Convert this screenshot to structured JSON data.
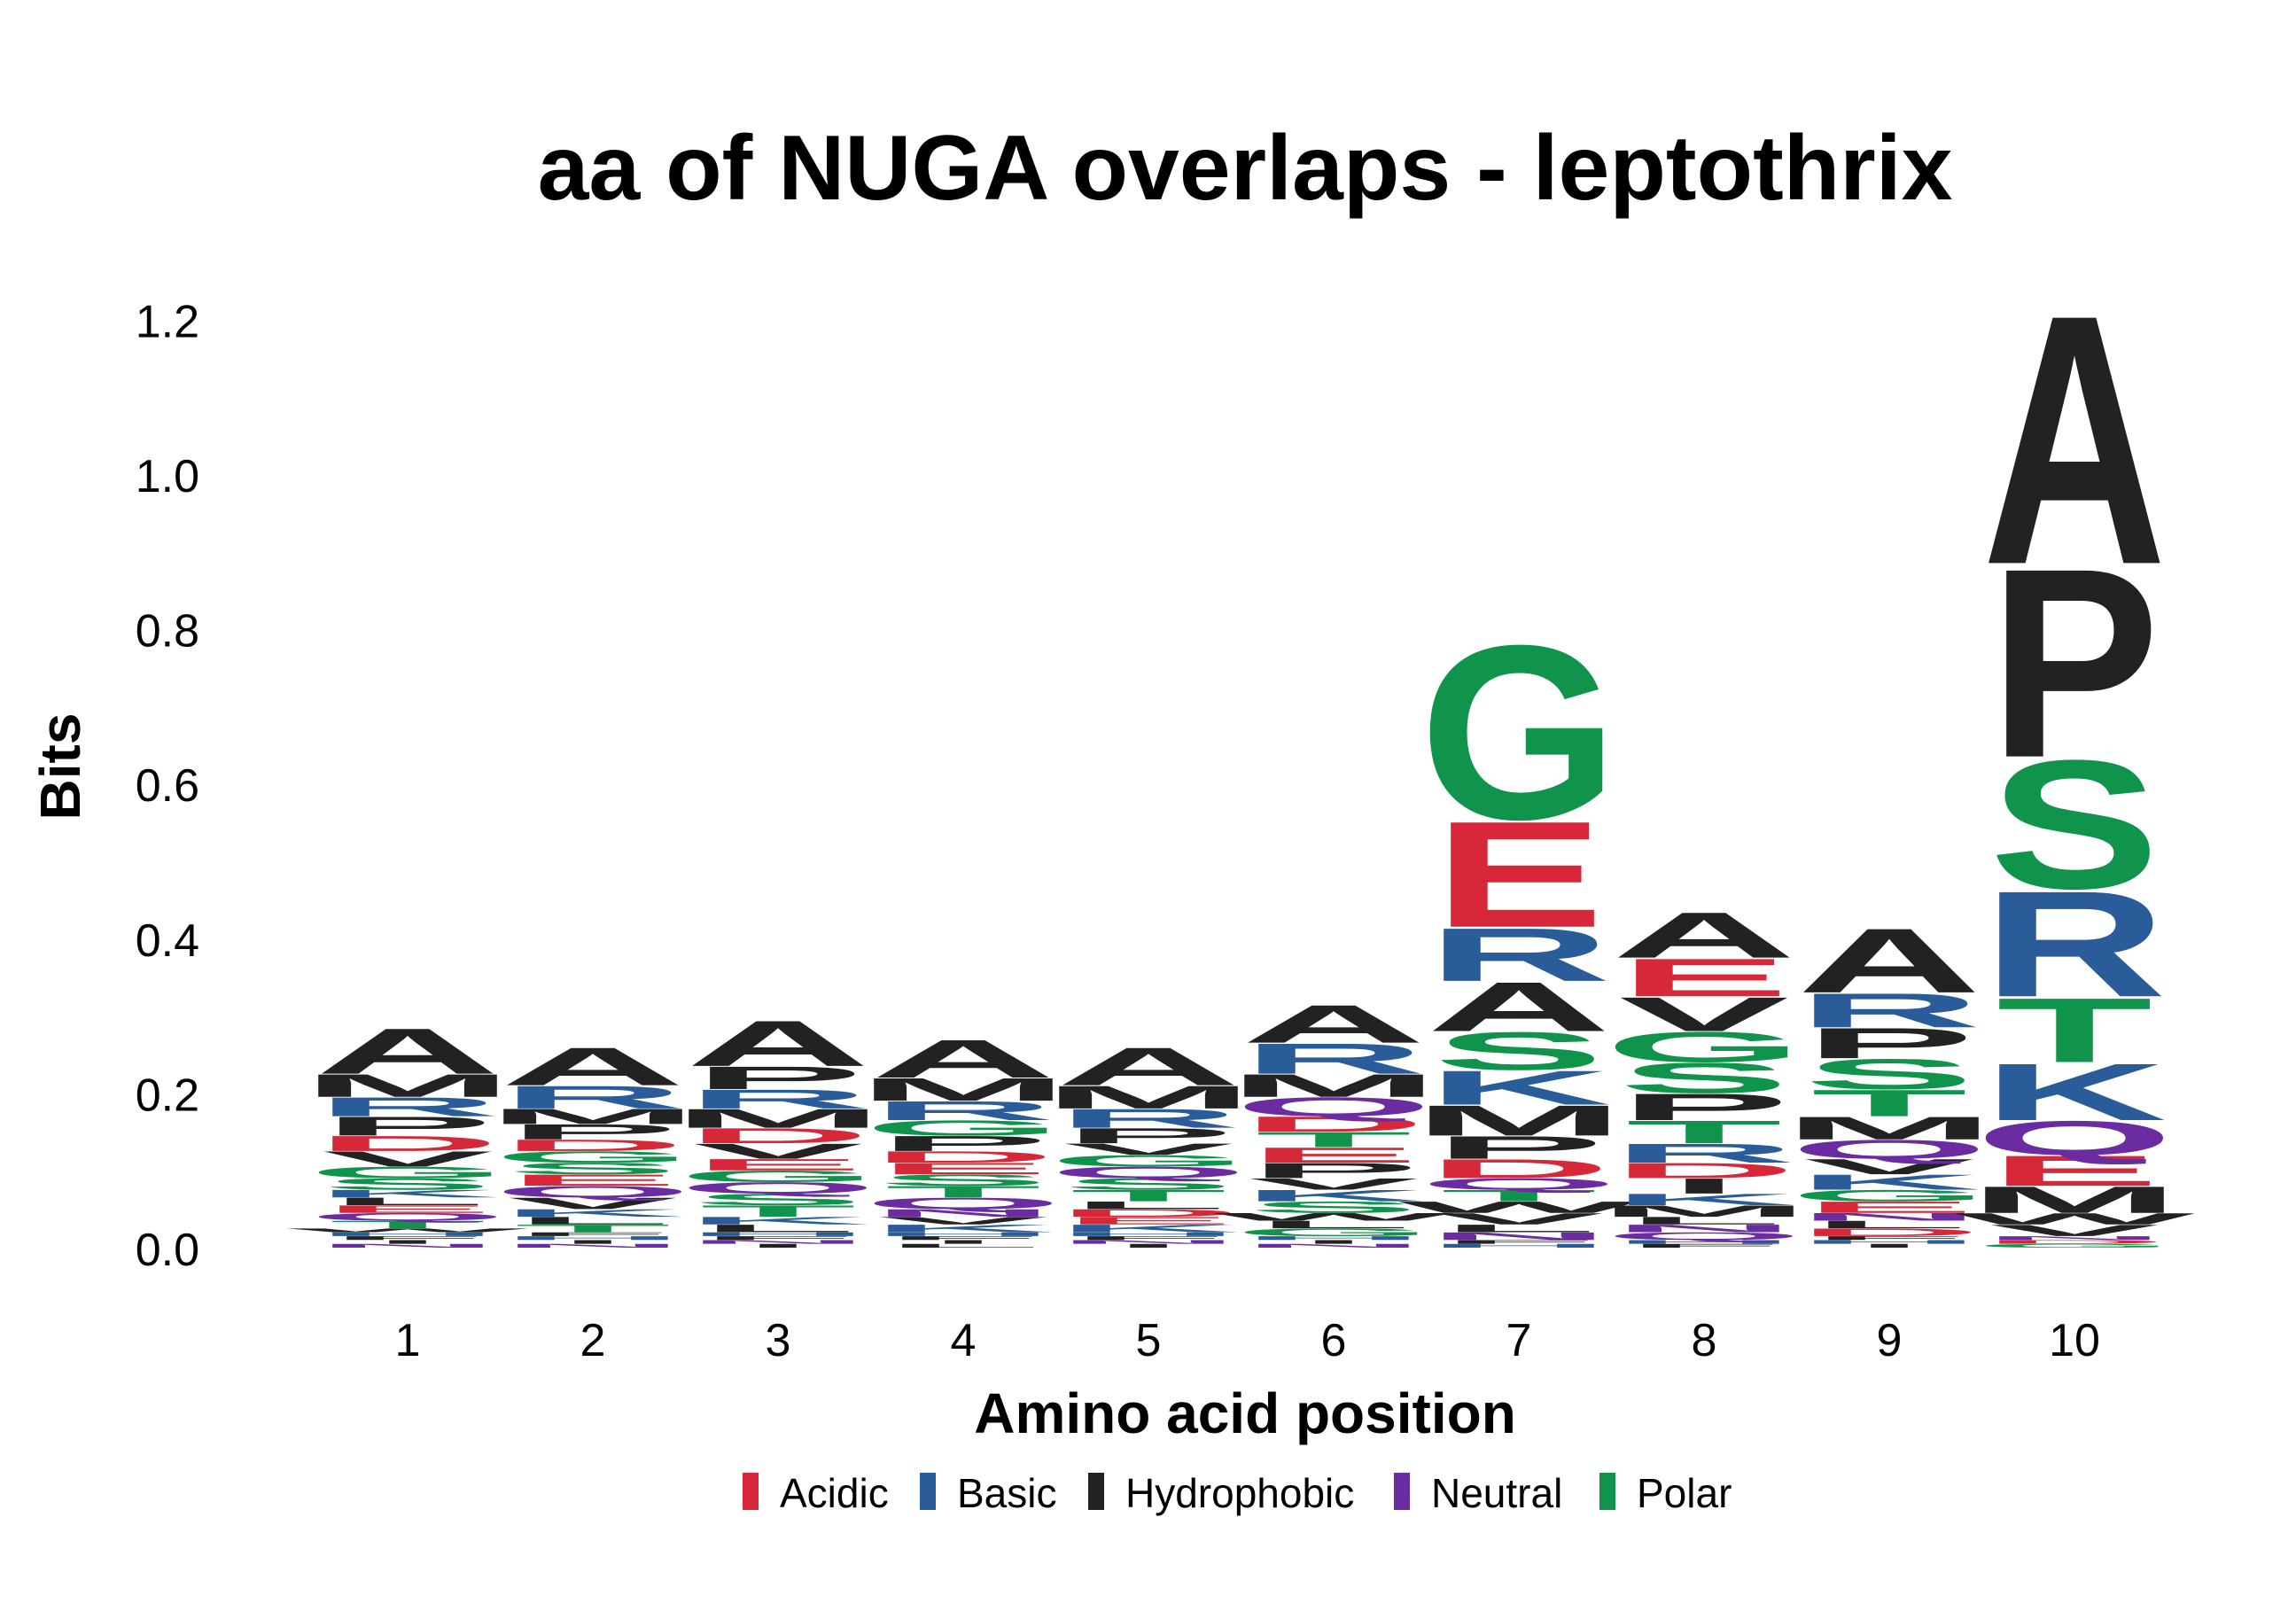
{
  "chart_data": {
    "type": "sequence-logo",
    "title": "aa of NUGA overlaps - leptothrix",
    "xlabel": "Amino acid position",
    "ylabel": "Bits",
    "ylim": [
      0,
      1.25
    ],
    "yticks": [
      0.0,
      0.2,
      0.4,
      0.6,
      0.8,
      1.0,
      1.2
    ],
    "ytick_labels": [
      "0.0",
      "0.2",
      "0.4",
      "0.6",
      "0.8",
      "1.0",
      "1.2"
    ],
    "grid": false,
    "legend_position": "bottom",
    "colors": {
      "Acidic": "#d62839",
      "Basic": "#2a5c9a",
      "Hydrophobic": "#222222",
      "Neutral": "#6a2ca0",
      "Polar": "#10944b"
    },
    "legend": [
      "Acidic",
      "Basic",
      "Hydrophobic",
      "Neutral",
      "Polar"
    ],
    "residue_class": {
      "D": "Acidic",
      "E": "Acidic",
      "K": "Basic",
      "R": "Basic",
      "H": "Basic",
      "A": "Hydrophobic",
      "V": "Hydrophobic",
      "L": "Hydrophobic",
      "I": "Hydrophobic",
      "P": "Hydrophobic",
      "F": "Hydrophobic",
      "M": "Hydrophobic",
      "W": "Hydrophobic",
      "Q": "Neutral",
      "N": "Neutral",
      "S": "Polar",
      "G": "Polar",
      "T": "Polar",
      "Y": "Polar",
      "C": "Polar"
    },
    "positions": [
      {
        "x": "1",
        "letters": [
          {
            "aa": "A",
            "h": 0.06
          },
          {
            "aa": "M",
            "h": 0.03
          },
          {
            "aa": "P",
            "h": 0.025
          },
          {
            "aa": "R",
            "h": 0.025
          },
          {
            "aa": "V",
            "h": 0.02
          },
          {
            "aa": "D",
            "h": 0.02
          },
          {
            "aa": "S",
            "h": 0.015
          },
          {
            "aa": "G",
            "h": 0.015
          },
          {
            "aa": "T",
            "h": 0.01
          },
          {
            "aa": "Q",
            "h": 0.01
          },
          {
            "aa": "E",
            "h": 0.01
          },
          {
            "aa": "L",
            "h": 0.01
          },
          {
            "aa": "K",
            "h": 0.01
          },
          {
            "aa": "N",
            "h": 0.005
          },
          {
            "aa": "I",
            "h": 0.005
          },
          {
            "aa": "F",
            "h": 0.005
          },
          {
            "aa": "H",
            "h": 0.005
          },
          {
            "aa": "W",
            "h": 0.005
          }
        ]
      },
      {
        "x": "2",
        "letters": [
          {
            "aa": "A",
            "h": 0.05
          },
          {
            "aa": "R",
            "h": 0.03
          },
          {
            "aa": "P",
            "h": 0.02
          },
          {
            "aa": "M",
            "h": 0.02
          },
          {
            "aa": "V",
            "h": 0.015
          },
          {
            "aa": "Q",
            "h": 0.015
          },
          {
            "aa": "E",
            "h": 0.015
          },
          {
            "aa": "S",
            "h": 0.015
          },
          {
            "aa": "G",
            "h": 0.015
          },
          {
            "aa": "D",
            "h": 0.015
          },
          {
            "aa": "T",
            "h": 0.01
          },
          {
            "aa": "L",
            "h": 0.01
          },
          {
            "aa": "K",
            "h": 0.01
          },
          {
            "aa": "N",
            "h": 0.005
          },
          {
            "aa": "I",
            "h": 0.005
          },
          {
            "aa": "H",
            "h": 0.005
          },
          {
            "aa": "F",
            "h": 0.005
          }
        ]
      },
      {
        "x": "3",
        "letters": [
          {
            "aa": "A",
            "h": 0.06
          },
          {
            "aa": "P",
            "h": 0.03
          },
          {
            "aa": "M",
            "h": 0.025
          },
          {
            "aa": "R",
            "h": 0.025
          },
          {
            "aa": "V",
            "h": 0.02
          },
          {
            "aa": "D",
            "h": 0.02
          },
          {
            "aa": "T",
            "h": 0.015
          },
          {
            "aa": "S",
            "h": 0.015
          },
          {
            "aa": "Q",
            "h": 0.015
          },
          {
            "aa": "G",
            "h": 0.015
          },
          {
            "aa": "E",
            "h": 0.015
          },
          {
            "aa": "L",
            "h": 0.01
          },
          {
            "aa": "K",
            "h": 0.01
          },
          {
            "aa": "I",
            "h": 0.005
          },
          {
            "aa": "N",
            "h": 0.005
          },
          {
            "aa": "F",
            "h": 0.005
          },
          {
            "aa": "H",
            "h": 0.005
          }
        ]
      },
      {
        "x": "4",
        "letters": [
          {
            "aa": "A",
            "h": 0.05
          },
          {
            "aa": "M",
            "h": 0.03
          },
          {
            "aa": "R",
            "h": 0.025
          },
          {
            "aa": "P",
            "h": 0.02
          },
          {
            "aa": "G",
            "h": 0.02
          },
          {
            "aa": "Q",
            "h": 0.015
          },
          {
            "aa": "T",
            "h": 0.015
          },
          {
            "aa": "S",
            "h": 0.015
          },
          {
            "aa": "E",
            "h": 0.015
          },
          {
            "aa": "D",
            "h": 0.015
          },
          {
            "aa": "K",
            "h": 0.01
          },
          {
            "aa": "V",
            "h": 0.01
          },
          {
            "aa": "N",
            "h": 0.01
          },
          {
            "aa": "L",
            "h": 0.005
          },
          {
            "aa": "I",
            "h": 0.005
          },
          {
            "aa": "F",
            "h": 0.005
          },
          {
            "aa": "H",
            "h": 0.005
          }
        ]
      },
      {
        "x": "5",
        "letters": [
          {
            "aa": "A",
            "h": 0.05
          },
          {
            "aa": "M",
            "h": 0.03
          },
          {
            "aa": "R",
            "h": 0.025
          },
          {
            "aa": "P",
            "h": 0.02
          },
          {
            "aa": "T",
            "h": 0.015
          },
          {
            "aa": "S",
            "h": 0.015
          },
          {
            "aa": "Q",
            "h": 0.015
          },
          {
            "aa": "G",
            "h": 0.015
          },
          {
            "aa": "V",
            "h": 0.015
          },
          {
            "aa": "K",
            "h": 0.01
          },
          {
            "aa": "E",
            "h": 0.01
          },
          {
            "aa": "D",
            "h": 0.01
          },
          {
            "aa": "L",
            "h": 0.01
          },
          {
            "aa": "I",
            "h": 0.005
          },
          {
            "aa": "N",
            "h": 0.005
          },
          {
            "aa": "F",
            "h": 0.005
          },
          {
            "aa": "H",
            "h": 0.005
          }
        ]
      },
      {
        "x": "6",
        "letters": [
          {
            "aa": "A",
            "h": 0.05
          },
          {
            "aa": "R",
            "h": 0.04
          },
          {
            "aa": "M",
            "h": 0.03
          },
          {
            "aa": "Q",
            "h": 0.025
          },
          {
            "aa": "P",
            "h": 0.02
          },
          {
            "aa": "E",
            "h": 0.02
          },
          {
            "aa": "T",
            "h": 0.02
          },
          {
            "aa": "D",
            "h": 0.02
          },
          {
            "aa": "S",
            "h": 0.015
          },
          {
            "aa": "K",
            "h": 0.015
          },
          {
            "aa": "V",
            "h": 0.015
          },
          {
            "aa": "G",
            "h": 0.01
          },
          {
            "aa": "L",
            "h": 0.01
          },
          {
            "aa": "W",
            "h": 0.01
          },
          {
            "aa": "N",
            "h": 0.005
          },
          {
            "aa": "I",
            "h": 0.005
          },
          {
            "aa": "H",
            "h": 0.005
          }
        ]
      },
      {
        "x": "7",
        "letters": [
          {
            "aa": "G",
            "h": 0.23
          },
          {
            "aa": "E",
            "h": 0.14
          },
          {
            "aa": "R",
            "h": 0.07
          },
          {
            "aa": "A",
            "h": 0.065
          },
          {
            "aa": "S",
            "h": 0.05
          },
          {
            "aa": "K",
            "h": 0.045
          },
          {
            "aa": "M",
            "h": 0.04
          },
          {
            "aa": "P",
            "h": 0.03
          },
          {
            "aa": "D",
            "h": 0.025
          },
          {
            "aa": "V",
            "h": 0.015
          },
          {
            "aa": "W",
            "h": 0.015
          },
          {
            "aa": "T",
            "h": 0.015
          },
          {
            "aa": "Q",
            "h": 0.015
          },
          {
            "aa": "N",
            "h": 0.01
          },
          {
            "aa": "L",
            "h": 0.01
          },
          {
            "aa": "H",
            "h": 0.005
          },
          {
            "aa": "F",
            "h": 0.005
          }
        ]
      },
      {
        "x": "8",
        "letters": [
          {
            "aa": "A",
            "h": 0.06
          },
          {
            "aa": "E",
            "h": 0.05
          },
          {
            "aa": "V",
            "h": 0.045
          },
          {
            "aa": "S",
            "h": 0.04
          },
          {
            "aa": "G",
            "h": 0.04
          },
          {
            "aa": "P",
            "h": 0.035
          },
          {
            "aa": "T",
            "h": 0.03
          },
          {
            "aa": "R",
            "h": 0.025
          },
          {
            "aa": "I",
            "h": 0.02
          },
          {
            "aa": "D",
            "h": 0.02
          },
          {
            "aa": "M",
            "h": 0.015
          },
          {
            "aa": "K",
            "h": 0.015
          },
          {
            "aa": "Q",
            "h": 0.01
          },
          {
            "aa": "N",
            "h": 0.01
          },
          {
            "aa": "L",
            "h": 0.01
          },
          {
            "aa": "F",
            "h": 0.005
          },
          {
            "aa": "H",
            "h": 0.005
          }
        ]
      },
      {
        "x": "9",
        "letters": [
          {
            "aa": "A",
            "h": 0.085
          },
          {
            "aa": "R",
            "h": 0.045
          },
          {
            "aa": "S",
            "h": 0.04
          },
          {
            "aa": "P",
            "h": 0.04
          },
          {
            "aa": "T",
            "h": 0.035
          },
          {
            "aa": "M",
            "h": 0.03
          },
          {
            "aa": "Q",
            "h": 0.025
          },
          {
            "aa": "K",
            "h": 0.02
          },
          {
            "aa": "V",
            "h": 0.02
          },
          {
            "aa": "E",
            "h": 0.015
          },
          {
            "aa": "G",
            "h": 0.015
          },
          {
            "aa": "D",
            "h": 0.01
          },
          {
            "aa": "L",
            "h": 0.01
          },
          {
            "aa": "N",
            "h": 0.01
          },
          {
            "aa": "I",
            "h": 0.005
          },
          {
            "aa": "H",
            "h": 0.005
          },
          {
            "aa": "F",
            "h": 0.005
          }
        ]
      },
      {
        "x": "10",
        "letters": [
          {
            "aa": "A",
            "h": 0.33
          },
          {
            "aa": "P",
            "h": 0.25
          },
          {
            "aa": "S",
            "h": 0.17
          },
          {
            "aa": "R",
            "h": 0.14
          },
          {
            "aa": "T",
            "h": 0.085
          },
          {
            "aa": "K",
            "h": 0.075
          },
          {
            "aa": "Q",
            "h": 0.045
          },
          {
            "aa": "E",
            "h": 0.04
          },
          {
            "aa": "M",
            "h": 0.035
          },
          {
            "aa": "V",
            "h": 0.015
          },
          {
            "aa": "W",
            "h": 0.015
          },
          {
            "aa": "G",
            "h": 0.005
          },
          {
            "aa": "D",
            "h": 0.005
          },
          {
            "aa": "N",
            "h": 0.005
          }
        ]
      }
    ]
  }
}
